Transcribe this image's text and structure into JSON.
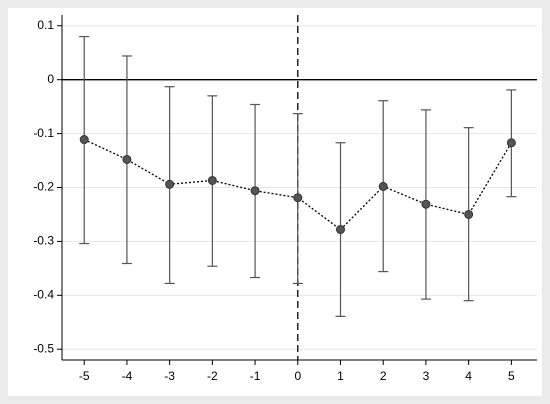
{
  "chart_data": {
    "type": "errorbar",
    "x": [
      -5,
      -4,
      -3,
      -2,
      -1,
      0,
      1,
      2,
      3,
      4,
      5
    ],
    "series": [
      {
        "color": "#555555",
        "values": [
          -0.111,
          -0.148,
          -0.194,
          -0.187,
          -0.206,
          -0.219,
          -0.278,
          -0.198,
          -0.231,
          -0.25,
          -0.117
        ],
        "lower": [
          -0.304,
          -0.341,
          -0.378,
          -0.346,
          -0.367,
          -0.378,
          -0.439,
          -0.356,
          -0.407,
          -0.41,
          -0.217
        ],
        "upper": [
          0.08,
          0.044,
          -0.013,
          -0.03,
          -0.046,
          -0.063,
          -0.117,
          -0.039,
          -0.056,
          -0.089,
          -0.019
        ]
      }
    ],
    "xlim": [
      -5.52,
      5.6
    ],
    "ylim": [
      -0.52,
      0.12
    ],
    "xticks": [
      -5,
      -4,
      -3,
      -2,
      -1,
      0,
      1,
      2,
      3,
      4,
      5
    ],
    "yticks": [
      0.1,
      0,
      -0.1,
      -0.2,
      -0.3,
      -0.4,
      -0.5
    ],
    "grid": true,
    "hline": 0,
    "vline": 0
  }
}
